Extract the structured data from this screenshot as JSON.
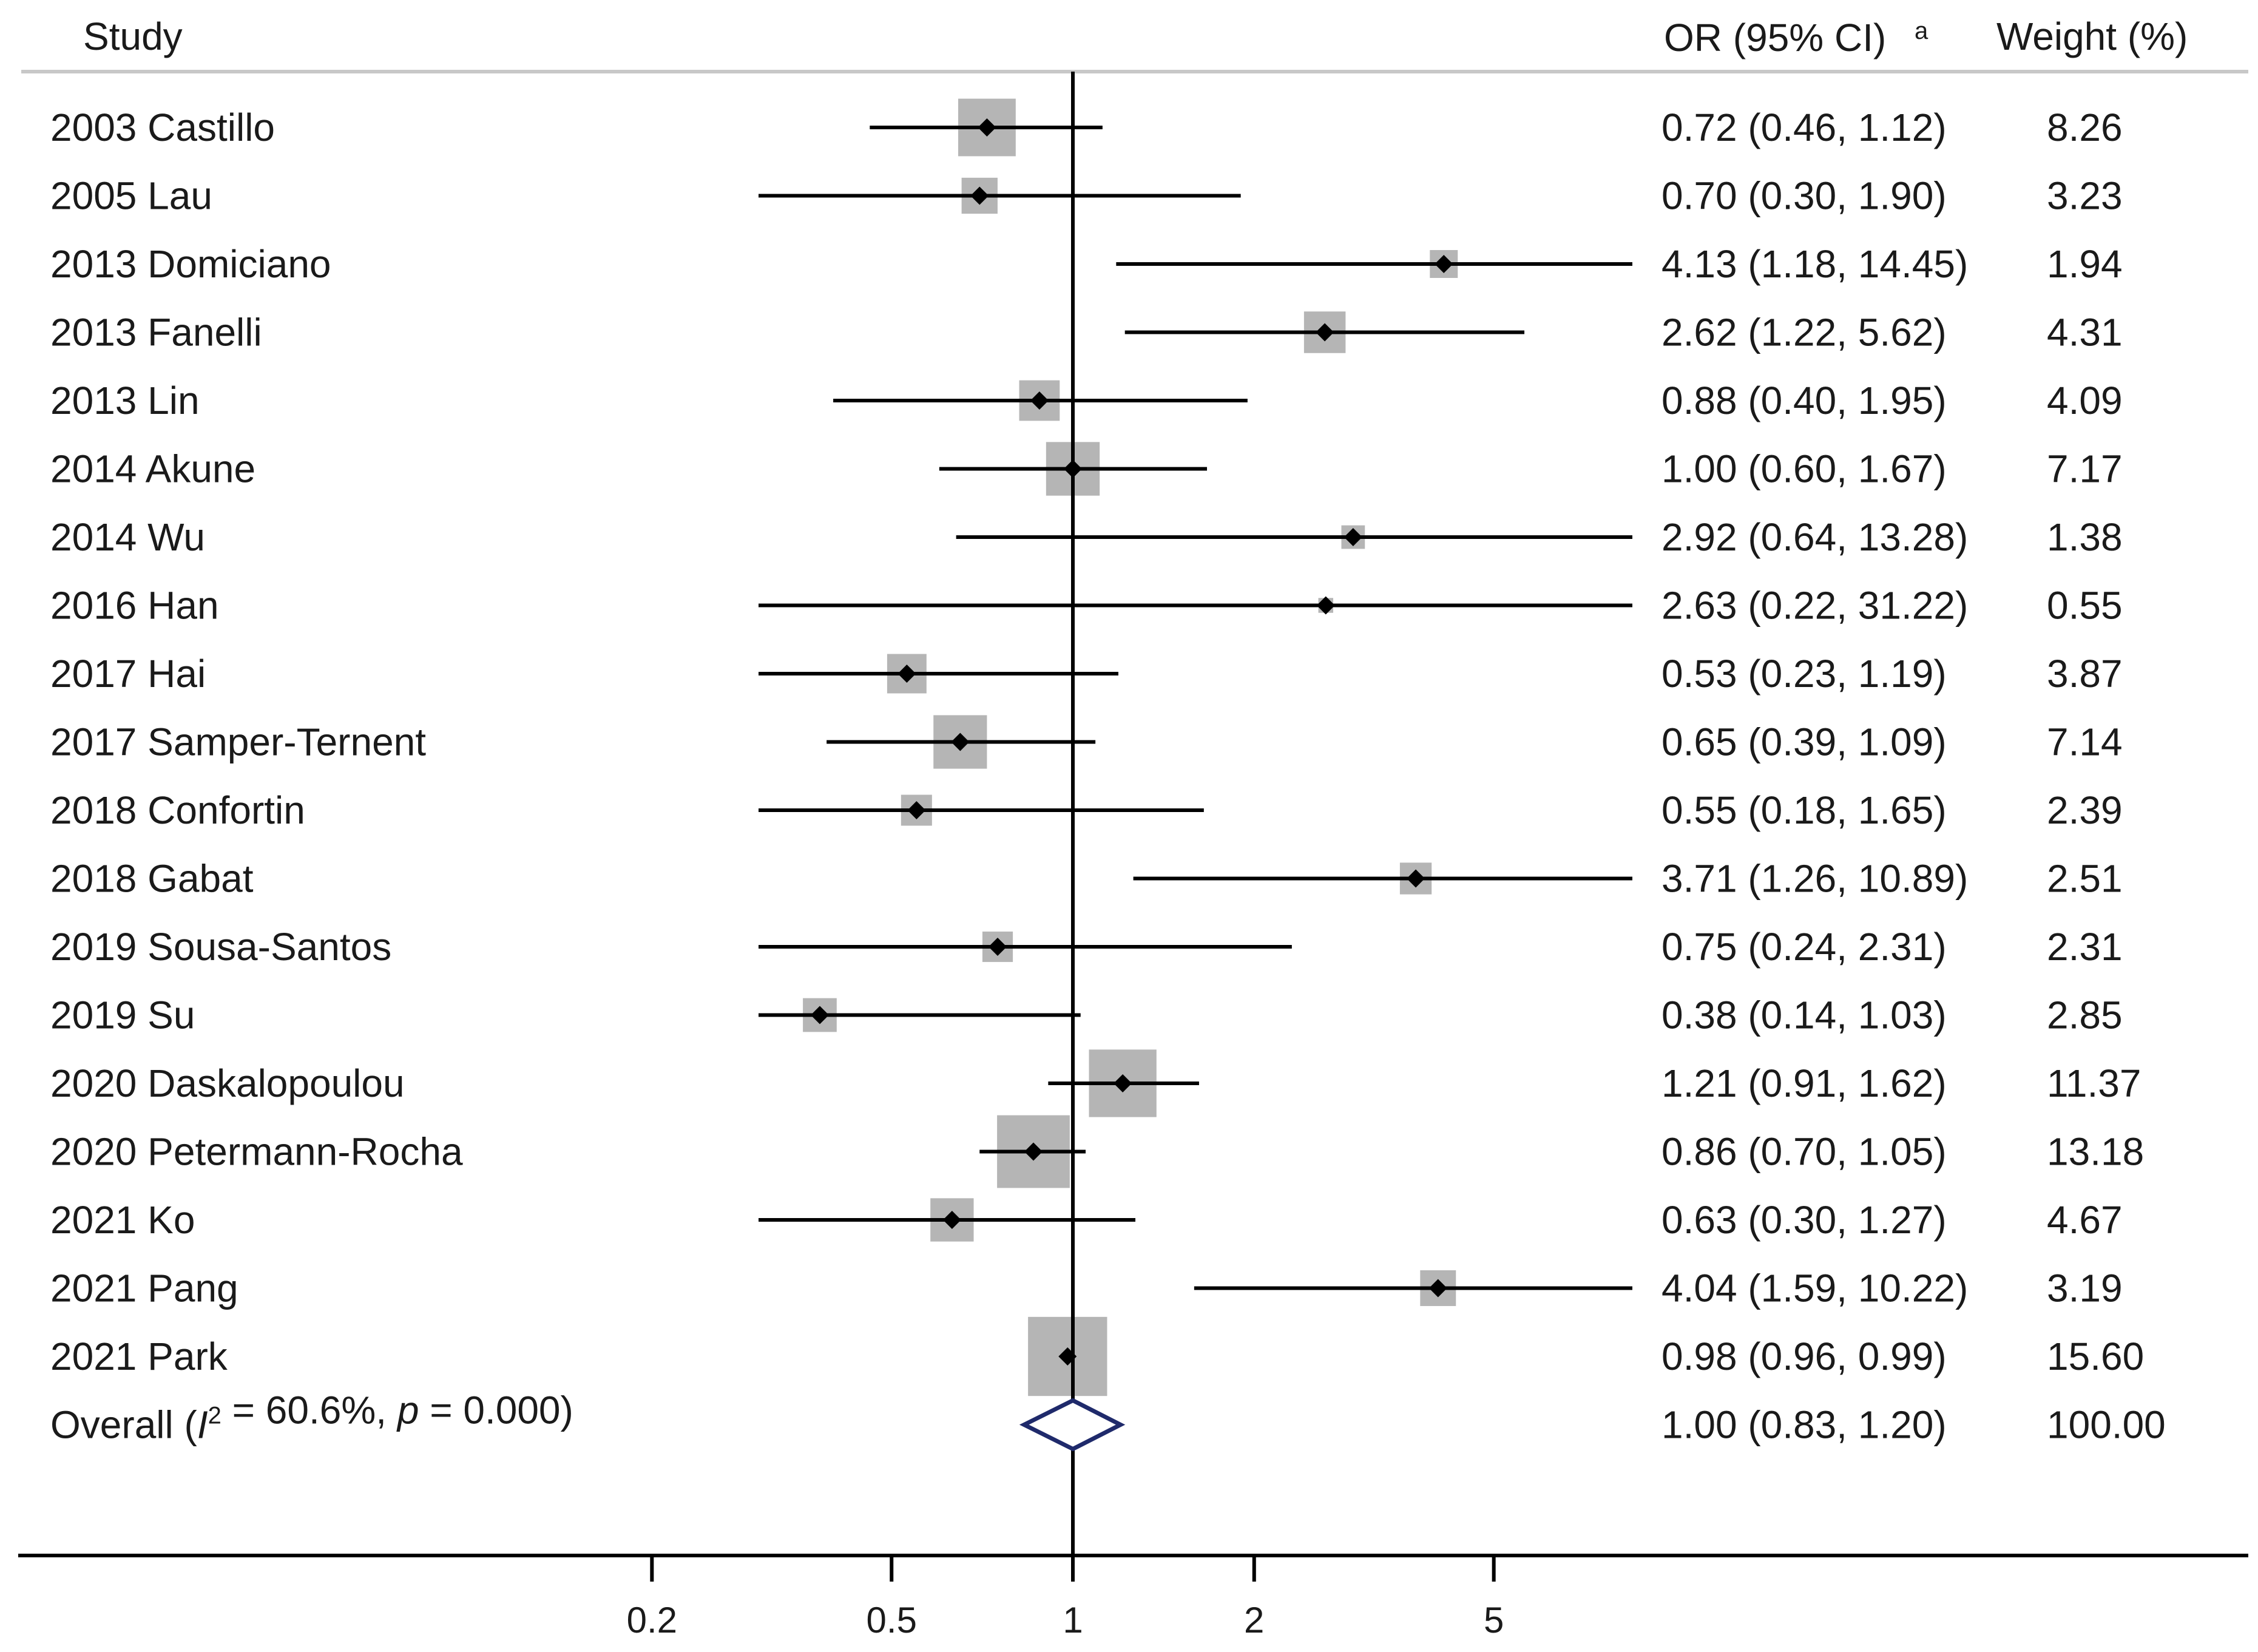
{
  "chart_data": {
    "type": "forest",
    "scale": "log",
    "headers": {
      "study": "Study",
      "or": "OR (95% CI)",
      "or_mark": "a",
      "weight": "Weight (%)"
    },
    "x_ticks": [
      {
        "value": 0.2,
        "label": "0.2"
      },
      {
        "value": 0.5,
        "label": "0.5"
      },
      {
        "value": 1,
        "label": "1"
      },
      {
        "value": 2,
        "label": "2"
      },
      {
        "value": 5,
        "label": "5"
      }
    ],
    "reference_value": 1,
    "studies": [
      {
        "name": "2003 Castillo",
        "or": 0.72,
        "lo": 0.46,
        "hi": 1.12,
        "weight": 8.26,
        "or_text": "0.72 (0.46, 1.12)",
        "weight_text": "8.26"
      },
      {
        "name": "2005 Lau",
        "or": 0.7,
        "lo": 0.3,
        "hi": 1.9,
        "weight": 3.23,
        "or_text": "0.70 (0.30, 1.90)",
        "weight_text": "3.23"
      },
      {
        "name": "2013 Domiciano",
        "or": 4.13,
        "lo": 1.18,
        "hi": 14.45,
        "weight": 1.94,
        "or_text": "4.13 (1.18, 14.45)",
        "weight_text": "1.94"
      },
      {
        "name": "2013 Fanelli",
        "or": 2.62,
        "lo": 1.22,
        "hi": 5.62,
        "weight": 4.31,
        "or_text": "2.62 (1.22, 5.62)",
        "weight_text": "4.31"
      },
      {
        "name": "2013 Lin",
        "or": 0.88,
        "lo": 0.4,
        "hi": 1.95,
        "weight": 4.09,
        "or_text": "0.88 (0.40, 1.95)",
        "weight_text": "4.09"
      },
      {
        "name": "2014 Akune",
        "or": 1.0,
        "lo": 0.6,
        "hi": 1.67,
        "weight": 7.17,
        "or_text": "1.00 (0.60, 1.67)",
        "weight_text": "7.17"
      },
      {
        "name": "2014 Wu",
        "or": 2.92,
        "lo": 0.64,
        "hi": 13.28,
        "weight": 1.38,
        "or_text": "2.92 (0.64, 13.28)",
        "weight_text": "1.38"
      },
      {
        "name": "2016 Han",
        "or": 2.63,
        "lo": 0.22,
        "hi": 31.22,
        "weight": 0.55,
        "or_text": "2.63 (0.22, 31.22)",
        "weight_text": "0.55"
      },
      {
        "name": "2017 Hai",
        "or": 0.53,
        "lo": 0.23,
        "hi": 1.19,
        "weight": 3.87,
        "or_text": "0.53 (0.23, 1.19)",
        "weight_text": "3.87"
      },
      {
        "name": "2017 Samper-Ternent",
        "or": 0.65,
        "lo": 0.39,
        "hi": 1.09,
        "weight": 7.14,
        "or_text": "0.65 (0.39, 1.09)",
        "weight_text": "7.14"
      },
      {
        "name": "2018 Confortin",
        "or": 0.55,
        "lo": 0.18,
        "hi": 1.65,
        "weight": 2.39,
        "or_text": "0.55 (0.18, 1.65)",
        "weight_text": "2.39"
      },
      {
        "name": "2018 Gabat",
        "or": 3.71,
        "lo": 1.26,
        "hi": 10.89,
        "weight": 2.51,
        "or_text": "3.71 (1.26, 10.89)",
        "weight_text": "2.51"
      },
      {
        "name": "2019 Sousa-Santos",
        "or": 0.75,
        "lo": 0.24,
        "hi": 2.31,
        "weight": 2.31,
        "or_text": "0.75 (0.24, 2.31)",
        "weight_text": "2.31"
      },
      {
        "name": "2019 Su",
        "or": 0.38,
        "lo": 0.14,
        "hi": 1.03,
        "weight": 2.85,
        "or_text": "0.38 (0.14, 1.03)",
        "weight_text": "2.85"
      },
      {
        "name": "2020 Daskalopoulou",
        "or": 1.21,
        "lo": 0.91,
        "hi": 1.62,
        "weight": 11.37,
        "or_text": "1.21 (0.91, 1.62)",
        "weight_text": "11.37"
      },
      {
        "name": "2020 Petermann-Rocha",
        "or": 0.86,
        "lo": 0.7,
        "hi": 1.05,
        "weight": 13.18,
        "or_text": "0.86 (0.70, 1.05)",
        "weight_text": "13.18"
      },
      {
        "name": "2021 Ko",
        "or": 0.63,
        "lo": 0.3,
        "hi": 1.27,
        "weight": 4.67,
        "or_text": "0.63 (0.30, 1.27)",
        "weight_text": "4.67"
      },
      {
        "name": "2021 Pang",
        "or": 4.04,
        "lo": 1.59,
        "hi": 10.22,
        "weight": 3.19,
        "or_text": "4.04 (1.59, 10.22)",
        "weight_text": "3.19"
      },
      {
        "name": "2021 Park",
        "or": 0.98,
        "lo": 0.96,
        "hi": 0.99,
        "weight": 15.6,
        "or_text": "0.98 (0.96, 0.99)",
        "weight_text": "15.60"
      }
    ],
    "overall": {
      "label": "Overall",
      "i2_symbol": "I",
      "i2_sup": "2",
      "i2_text": " = 60.6%, ",
      "p_symbol": "p",
      "p_text": " = 0.000)",
      "open_paren": "(",
      "or": 1.0,
      "lo": 0.83,
      "hi": 1.2,
      "or_text": "1.00 (0.83, 1.20)",
      "weight_text": "100.00"
    },
    "colors": {
      "box": "#b5b5b5",
      "line": "#000000",
      "diamond": "#1f2a6b",
      "header_rule": "#c8c8c8"
    }
  }
}
